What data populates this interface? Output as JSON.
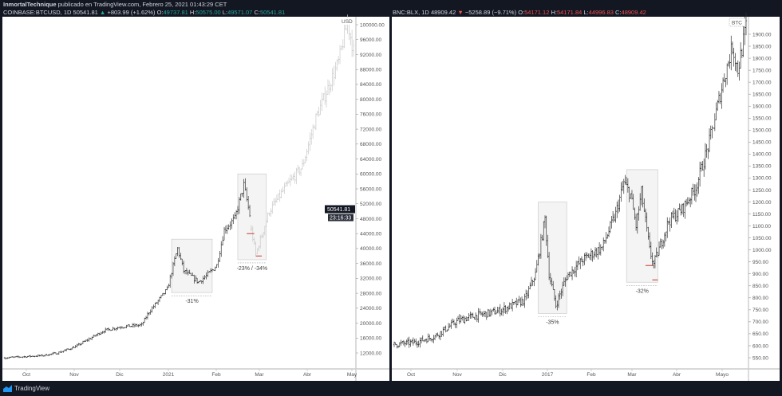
{
  "author_line": {
    "author": "InmortalTechnique",
    "text": "publicado en TradingView.com, Febrero 25, 2021 01:43:29 CET"
  },
  "footer": {
    "brand": "TradingView",
    "icon": "tradingview-logo-icon"
  },
  "colors": {
    "bar": "#333333",
    "projected_bar": "#c8c8c8",
    "box_fill": "#f4f4f4",
    "box_stroke": "#cccccc",
    "support_line": "#c0392b",
    "up": "#26a69a",
    "down": "#ef5350"
  },
  "chart_data": [
    {
      "type": "ohlc",
      "symbol": "COINBASE:BTCUSD, 1D",
      "last": "50541.81",
      "change": "+803.99 (+1.62%)",
      "direction": "up",
      "ohlc": {
        "o_label": "O:",
        "o": "49737.81",
        "h_label": "H:",
        "h": "50575.00",
        "l_label": "L:",
        "l": "49571.07",
        "c_label": "C:",
        "c": "50541.81"
      },
      "currency": "USD",
      "price_tag": "50541.81",
      "countdown": "23:16:33",
      "y_ticks": [
        "100000.00",
        "96000.00",
        "92000.00",
        "88000.00",
        "84000.00",
        "80000.00",
        "76000.00",
        "72000.00",
        "68000.00",
        "64000.00",
        "60000.00",
        "56000.00",
        "52000.00",
        "48000.00",
        "44000.00",
        "40000.00",
        "36000.00",
        "32000.00",
        "28000.00",
        "24000.00",
        "20000.00",
        "16000.00",
        "12000.00"
      ],
      "ylim": [
        10000,
        101500
      ],
      "x_ticks": [
        "Oct",
        "Nov",
        "Dic",
        "2021",
        "Feb",
        "Mar",
        "Abr",
        "May"
      ],
      "xlim": [
        "2020-09-15",
        "2021-05-05"
      ],
      "closes": [
        [
          "2020-09-15",
          10700
        ],
        [
          "2020-10-10",
          11300
        ],
        [
          "2020-10-20",
          12000
        ],
        [
          "2020-11-01",
          13700
        ],
        [
          "2020-11-20",
          18000
        ],
        [
          "2020-12-01",
          19000
        ],
        [
          "2020-12-15",
          19500
        ],
        [
          "2020-12-20",
          23000
        ],
        [
          "2021-01-01",
          29000
        ],
        [
          "2021-01-08",
          40000
        ],
        [
          "2021-01-12",
          34000
        ],
        [
          "2021-01-22",
          31000
        ],
        [
          "2021-01-28",
          33000
        ],
        [
          "2021-02-03",
          35500
        ],
        [
          "2021-02-08",
          45000
        ],
        [
          "2021-02-15",
          48000
        ],
        [
          "2021-02-21",
          57000
        ],
        [
          "2021-02-25",
          49000
        ]
      ],
      "projection": [
        [
          "2021-02-26",
          45000
        ],
        [
          "2021-03-01",
          38500
        ],
        [
          "2021-03-10",
          50000
        ],
        [
          "2021-03-20",
          56000
        ],
        [
          "2021-04-01",
          62000
        ],
        [
          "2021-04-10",
          75000
        ],
        [
          "2021-04-25",
          90000
        ],
        [
          "2021-05-01",
          100500
        ],
        [
          "2021-05-05",
          93000
        ]
      ],
      "boxes": [
        {
          "from": "2021-01-04",
          "to": "2021-01-31",
          "high": 42500,
          "low": 28200,
          "label": "-31%"
        },
        {
          "from": "2021-02-17",
          "to": "2021-03-08",
          "high": 60000,
          "low": 37000,
          "label": "-23% / -34%"
        }
      ],
      "support_lines": [
        {
          "from": "2021-02-23",
          "to": "2021-02-28",
          "price": 44000
        },
        {
          "from": "2021-03-01",
          "to": "2021-03-05",
          "price": 38000
        }
      ]
    },
    {
      "type": "ohlc",
      "symbol": "BNC:BLX, 1D",
      "last": "48909.42",
      "change": "−5258.89 (−9.71%)",
      "direction": "down",
      "ohlc": {
        "o_label": "O:",
        "o": "54171.12",
        "h_label": "H:",
        "h": "54171.84",
        "l_label": "L:",
        "l": "44996.83",
        "c_label": "C:",
        "c": "48909.42"
      },
      "currency": "BTC",
      "y_ticks": [
        "1900.00",
        "1850.00",
        "1800.00",
        "1750.00",
        "1700.00",
        "1650.00",
        "1600.00",
        "1550.00",
        "1500.00",
        "1450.00",
        "1400.00",
        "1350.00",
        "1300.00",
        "1250.00",
        "1200.00",
        "1150.00",
        "1100.00",
        "1050.00",
        "1000.00",
        "950.00",
        "900.00",
        "850.00",
        "800.00",
        "750.00",
        "700.00",
        "650.00",
        "600.00",
        "550.00"
      ],
      "ylim": [
        545,
        1935
      ],
      "x_ticks": [
        "Oct",
        "Nov",
        "Dic",
        "2017",
        "Feb",
        "Mar",
        "Abr",
        "Mayo"
      ],
      "xlim": [
        "2016-09-15",
        "2017-06-01"
      ],
      "closes": [
        [
          "2016-09-15",
          605
        ],
        [
          "2016-10-01",
          615
        ],
        [
          "2016-10-15",
          640
        ],
        [
          "2016-11-01",
          705
        ],
        [
          "2016-11-10",
          720
        ],
        [
          "2016-12-01",
          745
        ],
        [
          "2016-12-20",
          790
        ],
        [
          "2016-12-28",
          900
        ],
        [
          "2017-01-04",
          1130
        ],
        [
          "2017-01-07",
          900
        ],
        [
          "2017-01-12",
          770
        ],
        [
          "2017-01-20",
          890
        ],
        [
          "2017-02-01",
          960
        ],
        [
          "2017-02-15",
          1010
        ],
        [
          "2017-02-25",
          1150
        ],
        [
          "2017-03-03",
          1280
        ],
        [
          "2017-03-08",
          1230
        ],
        [
          "2017-03-12",
          1100
        ],
        [
          "2017-03-16",
          1240
        ],
        [
          "2017-03-22",
          1000
        ],
        [
          "2017-03-25",
          940
        ],
        [
          "2017-03-30",
          1020
        ],
        [
          "2017-04-05",
          1120
        ],
        [
          "2017-04-15",
          1170
        ],
        [
          "2017-04-25",
          1260
        ],
        [
          "2017-05-05",
          1450
        ],
        [
          "2017-05-15",
          1700
        ],
        [
          "2017-05-22",
          1850
        ],
        [
          "2017-05-26",
          1750
        ],
        [
          "2017-06-01",
          1930
        ]
      ],
      "boxes": [
        {
          "from": "2016-12-30",
          "to": "2017-01-20",
          "high": 1200,
          "low": 735,
          "label": "-35%"
        },
        {
          "from": "2017-03-05",
          "to": "2017-03-28",
          "high": 1335,
          "low": 865,
          "label": "-32%"
        }
      ],
      "support_lines": [
        {
          "from": "2017-03-19",
          "to": "2017-03-25",
          "price": 935
        },
        {
          "from": "2017-03-24",
          "to": "2017-03-28",
          "price": 875
        }
      ]
    }
  ]
}
